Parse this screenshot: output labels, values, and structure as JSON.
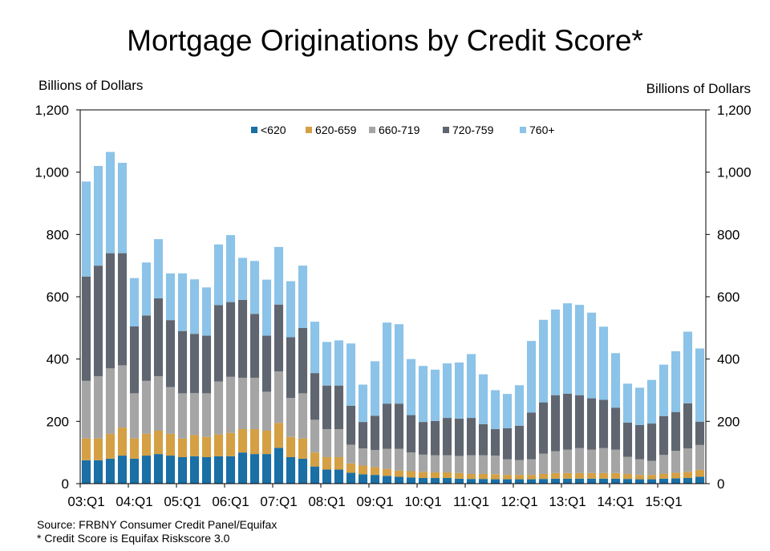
{
  "chart_data": {
    "type": "bar",
    "stacked": true,
    "title": "Mortgage Originations by Credit Score*",
    "ylabel_left": "Billions of Dollars",
    "ylabel_right": "Billions of Dollars",
    "ylim": [
      0,
      1200
    ],
    "yticks": [
      0,
      200,
      400,
      600,
      800,
      1000,
      1200
    ],
    "ytick_labels": [
      "0",
      "200",
      "400",
      "600",
      "800",
      "1,000",
      "1,200"
    ],
    "x_tick_labels": [
      "03:Q1",
      "04:Q1",
      "05:Q1",
      "06:Q1",
      "07:Q1",
      "08:Q1",
      "09:Q1",
      "10:Q1",
      "11:Q1",
      "12:Q1",
      "13:Q1",
      "14:Q1",
      "15:Q1"
    ],
    "categories": [
      "03:Q1",
      "03:Q2",
      "03:Q3",
      "03:Q4",
      "04:Q1",
      "04:Q2",
      "04:Q3",
      "04:Q4",
      "05:Q1",
      "05:Q2",
      "05:Q3",
      "05:Q4",
      "06:Q1",
      "06:Q2",
      "06:Q3",
      "06:Q4",
      "07:Q1",
      "07:Q2",
      "07:Q3",
      "07:Q4",
      "08:Q1",
      "08:Q2",
      "08:Q3",
      "08:Q4",
      "09:Q1",
      "09:Q2",
      "09:Q3",
      "09:Q4",
      "10:Q1",
      "10:Q2",
      "10:Q3",
      "10:Q4",
      "11:Q1",
      "11:Q2",
      "11:Q3",
      "11:Q4",
      "12:Q1",
      "12:Q2",
      "12:Q3",
      "12:Q4",
      "13:Q1",
      "13:Q2",
      "13:Q3",
      "13:Q4",
      "14:Q1",
      "14:Q2",
      "14:Q3",
      "14:Q4",
      "15:Q1",
      "15:Q2",
      "15:Q3",
      "15:Q4"
    ],
    "legend_position": "top-center",
    "grid": false,
    "series": [
      {
        "name": "<620",
        "color": "#1a6fa5",
        "values": [
          75,
          75,
          80,
          90,
          80,
          90,
          95,
          90,
          85,
          88,
          85,
          88,
          88,
          100,
          95,
          95,
          115,
          85,
          80,
          55,
          45,
          45,
          35,
          30,
          28,
          25,
          22,
          20,
          18,
          18,
          18,
          16,
          15,
          15,
          14,
          14,
          14,
          14,
          15,
          16,
          16,
          16,
          16,
          16,
          16,
          15,
          14,
          14,
          16,
          17,
          18,
          22
        ]
      },
      {
        "name": "620-659",
        "color": "#d4a043",
        "values": [
          70,
          70,
          80,
          90,
          65,
          70,
          75,
          70,
          60,
          68,
          65,
          70,
          75,
          75,
          80,
          75,
          80,
          65,
          65,
          45,
          40,
          40,
          30,
          28,
          25,
          22,
          20,
          20,
          20,
          18,
          18,
          18,
          16,
          16,
          16,
          14,
          14,
          14,
          16,
          18,
          18,
          18,
          18,
          18,
          18,
          16,
          14,
          14,
          16,
          18,
          20,
          22
        ]
      },
      {
        "name": "660-719",
        "color": "#a5a5a5",
        "values": [
          185,
          200,
          210,
          200,
          145,
          170,
          175,
          150,
          145,
          135,
          140,
          170,
          180,
          165,
          165,
          125,
          165,
          125,
          145,
          105,
          90,
          90,
          60,
          55,
          55,
          65,
          70,
          60,
          55,
          55,
          55,
          55,
          60,
          60,
          60,
          50,
          48,
          50,
          65,
          70,
          75,
          80,
          75,
          80,
          75,
          55,
          50,
          45,
          60,
          70,
          75,
          80
        ]
      },
      {
        "name": "720-759",
        "color": "#5f6670",
        "values": [
          335,
          355,
          370,
          360,
          215,
          210,
          250,
          215,
          200,
          190,
          185,
          245,
          240,
          250,
          205,
          180,
          215,
          195,
          210,
          150,
          140,
          140,
          125,
          85,
          110,
          145,
          145,
          120,
          105,
          110,
          120,
          120,
          120,
          100,
          85,
          100,
          110,
          150,
          165,
          180,
          180,
          170,
          165,
          155,
          135,
          110,
          110,
          120,
          125,
          125,
          145,
          75
        ]
      },
      {
        "name": "760+",
        "color": "#8cc3e8",
        "values": [
          305,
          320,
          325,
          290,
          155,
          170,
          190,
          150,
          185,
          175,
          155,
          195,
          215,
          135,
          170,
          180,
          185,
          180,
          200,
          165,
          140,
          145,
          200,
          120,
          175,
          260,
          255,
          180,
          180,
          165,
          175,
          180,
          205,
          160,
          125,
          110,
          130,
          230,
          265,
          275,
          290,
          290,
          275,
          235,
          175,
          125,
          120,
          140,
          165,
          195,
          230,
          235
        ]
      }
    ]
  },
  "source": "Source: FRBNY Consumer Credit Panel/Equifax",
  "note": "* Credit Score is Equifax Riskscore 3.0"
}
